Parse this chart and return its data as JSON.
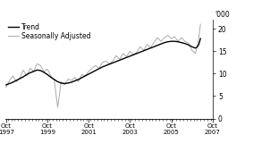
{
  "ylabel_right": "'000",
  "ylim": [
    0,
    22
  ],
  "yticks": [
    0,
    5,
    10,
    15,
    20
  ],
  "xlim_start": 1997.7,
  "xlim_end": 2007.25,
  "xtick_positions": [
    1997.75,
    1999.75,
    2001.75,
    2003.75,
    2005.75,
    2007.75
  ],
  "xtick_labels": [
    "Oct\n1997",
    "Oct\n1999",
    "Oct\n2001",
    "Oct\n2003",
    "Oct\n2005",
    "Oct\n2007"
  ],
  "legend_entries": [
    "Trend",
    "Seasonally Adjusted"
  ],
  "trend_color": "#000000",
  "sa_color": "#aaaaaa",
  "background_color": "#ffffff",
  "trend_lw": 1.0,
  "sa_lw": 0.7,
  "trend_data": [
    [
      1997.75,
      7.5
    ],
    [
      1997.917,
      7.8
    ],
    [
      1998.083,
      8.1
    ],
    [
      1998.25,
      8.5
    ],
    [
      1998.417,
      8.9
    ],
    [
      1998.583,
      9.3
    ],
    [
      1998.75,
      9.8
    ],
    [
      1998.917,
      10.2
    ],
    [
      1999.083,
      10.5
    ],
    [
      1999.25,
      10.8
    ],
    [
      1999.417,
      10.7
    ],
    [
      1999.583,
      10.3
    ],
    [
      1999.75,
      9.8
    ],
    [
      1999.917,
      9.2
    ],
    [
      2000.083,
      8.7
    ],
    [
      2000.25,
      8.2
    ],
    [
      2000.417,
      7.9
    ],
    [
      2000.583,
      7.8
    ],
    [
      2000.75,
      7.9
    ],
    [
      2000.917,
      8.1
    ],
    [
      2001.083,
      8.4
    ],
    [
      2001.25,
      8.7
    ],
    [
      2001.417,
      9.1
    ],
    [
      2001.583,
      9.5
    ],
    [
      2001.75,
      9.9
    ],
    [
      2001.917,
      10.3
    ],
    [
      2002.083,
      10.7
    ],
    [
      2002.25,
      11.1
    ],
    [
      2002.417,
      11.5
    ],
    [
      2002.583,
      11.8
    ],
    [
      2002.75,
      12.1
    ],
    [
      2002.917,
      12.4
    ],
    [
      2003.083,
      12.7
    ],
    [
      2003.25,
      13.0
    ],
    [
      2003.417,
      13.3
    ],
    [
      2003.583,
      13.6
    ],
    [
      2003.75,
      13.9
    ],
    [
      2003.917,
      14.2
    ],
    [
      2004.083,
      14.5
    ],
    [
      2004.25,
      14.8
    ],
    [
      2004.417,
      15.1
    ],
    [
      2004.583,
      15.4
    ],
    [
      2004.75,
      15.7
    ],
    [
      2004.917,
      16.0
    ],
    [
      2005.083,
      16.3
    ],
    [
      2005.25,
      16.6
    ],
    [
      2005.417,
      16.9
    ],
    [
      2005.583,
      17.1
    ],
    [
      2005.75,
      17.2
    ],
    [
      2005.917,
      17.2
    ],
    [
      2006.083,
      17.1
    ],
    [
      2006.25,
      16.9
    ],
    [
      2006.417,
      16.7
    ],
    [
      2006.583,
      16.4
    ],
    [
      2006.75,
      16.0
    ],
    [
      2006.917,
      15.7
    ],
    [
      2007.0,
      15.9
    ],
    [
      2007.083,
      16.5
    ],
    [
      2007.167,
      17.8
    ]
  ],
  "sa_data": [
    [
      1997.75,
      7.0
    ],
    [
      1997.917,
      8.5
    ],
    [
      1998.083,
      9.5
    ],
    [
      1998.25,
      8.2
    ],
    [
      1998.417,
      9.0
    ],
    [
      1998.583,
      10.8
    ],
    [
      1998.75,
      9.5
    ],
    [
      1998.917,
      11.2
    ],
    [
      1999.083,
      10.5
    ],
    [
      1999.25,
      12.2
    ],
    [
      1999.417,
      11.8
    ],
    [
      1999.583,
      10.5
    ],
    [
      1999.75,
      11.0
    ],
    [
      1999.917,
      9.5
    ],
    [
      2000.083,
      8.5
    ],
    [
      2000.25,
      2.5
    ],
    [
      2000.417,
      8.2
    ],
    [
      2000.583,
      7.5
    ],
    [
      2000.75,
      8.8
    ],
    [
      2000.917,
      8.5
    ],
    [
      2001.083,
      9.2
    ],
    [
      2001.25,
      8.2
    ],
    [
      2001.417,
      9.8
    ],
    [
      2001.583,
      9.5
    ],
    [
      2001.75,
      10.5
    ],
    [
      2001.917,
      11.2
    ],
    [
      2002.083,
      11.8
    ],
    [
      2002.25,
      11.2
    ],
    [
      2002.417,
      12.5
    ],
    [
      2002.583,
      12.8
    ],
    [
      2002.75,
      12.2
    ],
    [
      2002.917,
      12.8
    ],
    [
      2003.083,
      14.0
    ],
    [
      2003.25,
      13.2
    ],
    [
      2003.417,
      14.5
    ],
    [
      2003.583,
      13.8
    ],
    [
      2003.75,
      15.0
    ],
    [
      2003.917,
      14.2
    ],
    [
      2004.083,
      14.8
    ],
    [
      2004.25,
      16.0
    ],
    [
      2004.417,
      15.2
    ],
    [
      2004.583,
      16.5
    ],
    [
      2004.75,
      15.8
    ],
    [
      2004.917,
      17.0
    ],
    [
      2005.083,
      18.0
    ],
    [
      2005.25,
      17.2
    ],
    [
      2005.417,
      18.0
    ],
    [
      2005.583,
      18.5
    ],
    [
      2005.75,
      17.8
    ],
    [
      2005.917,
      18.2
    ],
    [
      2006.083,
      17.2
    ],
    [
      2006.25,
      18.0
    ],
    [
      2006.417,
      17.2
    ],
    [
      2006.583,
      16.8
    ],
    [
      2006.75,
      15.2
    ],
    [
      2006.917,
      14.5
    ],
    [
      2007.0,
      16.0
    ],
    [
      2007.083,
      18.0
    ],
    [
      2007.167,
      21.0
    ]
  ]
}
